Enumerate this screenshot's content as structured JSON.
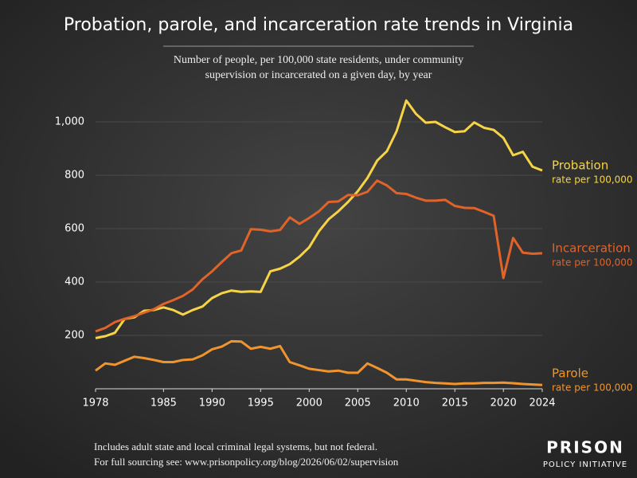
{
  "chart_data": {
    "type": "line",
    "title": "Probation, parole, and incarceration rate trends in Virginia",
    "subtitle": [
      "Number of people, per 100,000 state residents, under community",
      "supervision or incarcerated on a given day, by year"
    ],
    "x": [
      1978,
      1979,
      1980,
      1981,
      1982,
      1983,
      1984,
      1985,
      1986,
      1987,
      1988,
      1989,
      1990,
      1991,
      1992,
      1993,
      1994,
      1995,
      1996,
      1997,
      1998,
      1999,
      2000,
      2001,
      2002,
      2003,
      2004,
      2005,
      2006,
      2007,
      2008,
      2009,
      2010,
      2011,
      2012,
      2013,
      2014,
      2015,
      2016,
      2017,
      2018,
      2019,
      2020,
      2021,
      2022,
      2023,
      2024
    ],
    "xlim": [
      1978,
      2024
    ],
    "xticks": [
      1978,
      1985,
      1990,
      1995,
      2000,
      2005,
      2010,
      2015,
      2020,
      2024
    ],
    "ylim": [
      0,
      1100
    ],
    "yticks": [
      200,
      400,
      600,
      800,
      {
        "value": 1000,
        "label": "1,000"
      }
    ],
    "grid": true,
    "series": [
      {
        "name": "Probation",
        "note": "rate per 100,000",
        "color": "#f6d445",
        "values": [
          190,
          197,
          210,
          262,
          268,
          292,
          295,
          305,
          295,
          278,
          295,
          308,
          340,
          358,
          368,
          363,
          365,
          363,
          440,
          450,
          467,
          495,
          530,
          590,
          635,
          665,
          700,
          740,
          790,
          855,
          890,
          965,
          1080,
          1030,
          997,
          1000,
          980,
          962,
          965,
          998,
          978,
          970,
          940,
          875,
          888,
          832,
          818
        ]
      },
      {
        "name": "Incarceration",
        "note": "rate per 100,000",
        "color": "#e0632a",
        "values": [
          215,
          228,
          250,
          262,
          272,
          285,
          298,
          318,
          332,
          348,
          372,
          410,
          440,
          475,
          508,
          518,
          598,
          596,
          590,
          595,
          642,
          618,
          640,
          665,
          700,
          702,
          726,
          725,
          738,
          780,
          762,
          733,
          730,
          716,
          705,
          705,
          708,
          685,
          678,
          677,
          663,
          648,
          415,
          565,
          510,
          506,
          508
        ]
      },
      {
        "name": "Parole",
        "note": "rate per 100,000",
        "color": "#f0952e",
        "values": [
          68,
          95,
          90,
          105,
          120,
          115,
          108,
          100,
          100,
          108,
          110,
          125,
          148,
          158,
          178,
          177,
          150,
          157,
          150,
          160,
          100,
          88,
          75,
          70,
          65,
          68,
          60,
          60,
          95,
          78,
          60,
          35,
          35,
          30,
          25,
          22,
          20,
          18,
          20,
          20,
          22,
          22,
          23,
          21,
          18,
          16,
          14
        ]
      }
    ],
    "footnotes": [
      "Includes adult state and local criminal legal systems, but not federal.",
      "For full sourcing see: www.prisonpolicy.org/blog/2026/06/02/supervision"
    ],
    "logo": [
      "PRISON",
      "POLICY INITIATIVE"
    ]
  }
}
